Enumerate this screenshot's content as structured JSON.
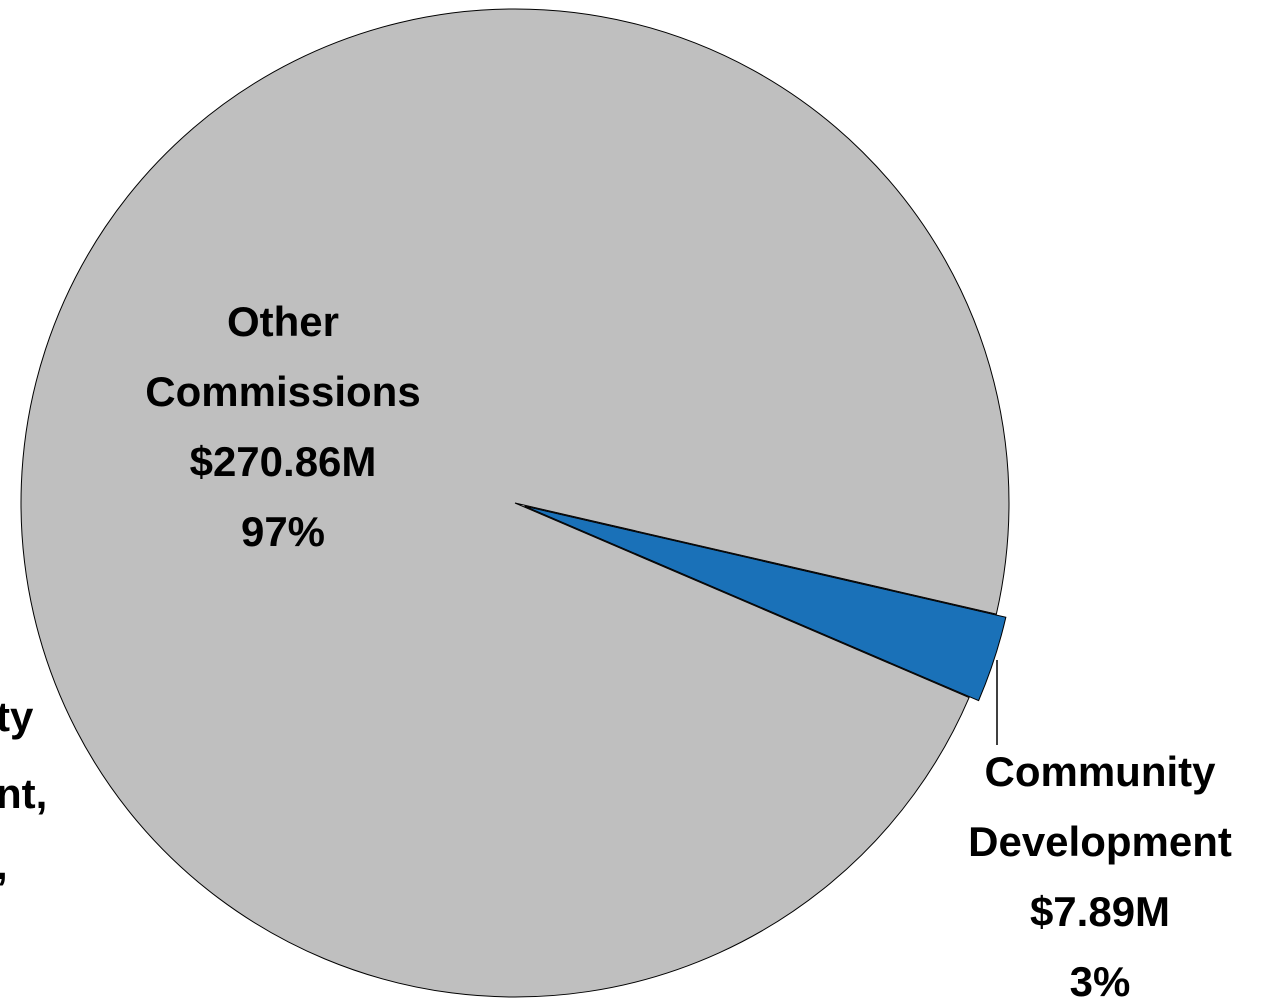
{
  "chart_data": {
    "type": "pie",
    "categories": [
      "Other Commissions",
      "Community Development"
    ],
    "values": [
      270.86,
      7.89
    ],
    "value_labels": [
      "$270.86M",
      "$7.89M"
    ],
    "percents": [
      97,
      3
    ],
    "percent_labels": [
      "97%",
      "3%"
    ],
    "colors": [
      "#bfbfbf",
      "#1a71b8"
    ],
    "annotations": [
      "ty",
      "nt,",
      ","
    ]
  }
}
